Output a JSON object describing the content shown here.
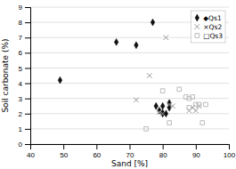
{
  "chart_data": {
    "type": "scatter",
    "xlabel": "Sand [%]",
    "ylabel": "Soil carbonate (%)",
    "xlim": [
      40,
      100
    ],
    "ylim": [
      0,
      9
    ],
    "xticks": [
      40,
      50,
      60,
      70,
      80,
      90,
      100
    ],
    "yticks": [
      0,
      1,
      2,
      3,
      4,
      5,
      6,
      7,
      8,
      9
    ],
    "grid": "y",
    "legend": "upper right",
    "series": [
      {
        "name": "◆Qs1",
        "color": "#111111",
        "marker": "diamond",
        "x": [
          49,
          66,
          72,
          77,
          78,
          79,
          80,
          80,
          80,
          81,
          82,
          82
        ],
        "values": [
          4.2,
          6.7,
          6.5,
          8.0,
          2.5,
          2.2,
          2.0,
          2.05,
          2.5,
          2.0,
          2.7,
          2.4
        ]
      },
      {
        "name": "×Qs2",
        "color": "#999999",
        "marker": "x",
        "x": [
          72,
          76,
          79,
          80,
          81,
          82,
          83,
          88,
          89,
          90,
          91
        ],
        "values": [
          2.9,
          4.5,
          2.1,
          2.0,
          7.0,
          2.6,
          2.5,
          2.2,
          2.4,
          2.2,
          2.5
        ]
      },
      {
        "name": "□Qs3",
        "color": "#bbbbbb",
        "marker": "open-square",
        "x": [
          75,
          80,
          82,
          85,
          87,
          88,
          88,
          89,
          90,
          91,
          92,
          93
        ],
        "values": [
          1.0,
          3.5,
          1.4,
          3.6,
          3.1,
          3.0,
          2.4,
          3.1,
          2.6,
          2.6,
          1.4,
          2.6
        ]
      }
    ]
  }
}
